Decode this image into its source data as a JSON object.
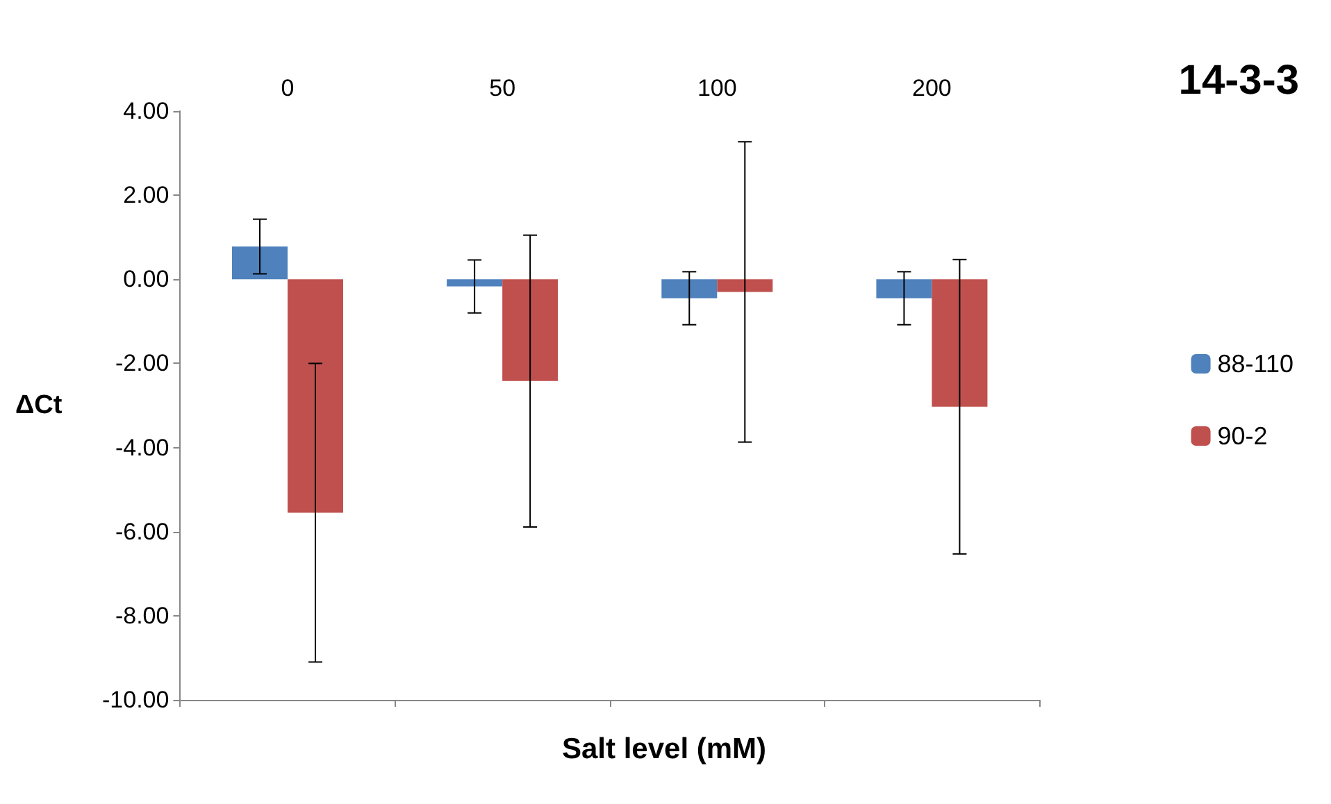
{
  "chart_data": {
    "type": "bar",
    "title": "14-3-3",
    "xlabel": "Salt level (mM)",
    "ylabel": "ΔCt",
    "categories": [
      "0",
      "50",
      "100",
      "200"
    ],
    "series": [
      {
        "name": "88-110",
        "color": "#4f81bd",
        "values": [
          0.78,
          -0.17,
          -0.45,
          -0.45
        ],
        "errors": [
          0.65,
          0.63,
          0.63,
          0.63
        ]
      },
      {
        "name": "90-2",
        "color": "#c0504d",
        "values": [
          -5.55,
          -2.42,
          -0.3,
          -3.03
        ],
        "errors": [
          3.55,
          3.47,
          3.57,
          3.5
        ]
      }
    ],
    "ylim": [
      -10,
      4
    ],
    "yticks": [
      {
        "value": -10,
        "label": "-10.00"
      },
      {
        "value": -8,
        "label": "-8.00"
      },
      {
        "value": -6,
        "label": "-6.00"
      },
      {
        "value": -4,
        "label": "-4.00"
      },
      {
        "value": -2,
        "label": "-2.00"
      },
      {
        "value": 0,
        "label": "0.00"
      },
      {
        "value": 2,
        "label": "2.00"
      },
      {
        "value": 4,
        "label": "4.00"
      }
    ],
    "grid": false,
    "legend": "right"
  }
}
